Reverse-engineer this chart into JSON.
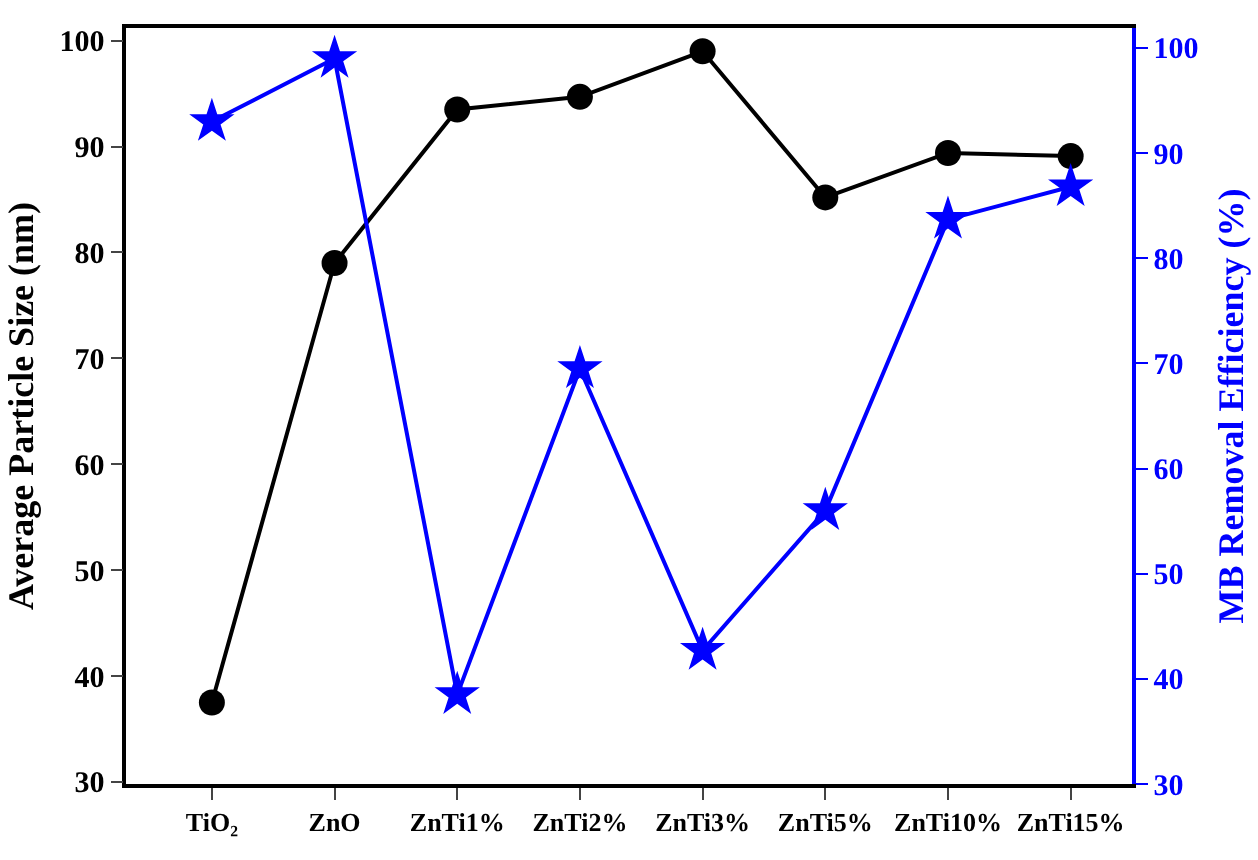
{
  "chart_data": {
    "type": "line",
    "ylabel": "Average Particle Size (nm)",
    "y2label": "MB Removal Efficiency (%)",
    "categories": [
      "TiO₂",
      "ZnO",
      "ZnTi1%",
      "ZnTi2%",
      "ZnTi3%",
      "ZnTi5%",
      "ZnTi10%",
      "ZnTi15%"
    ],
    "series": [
      {
        "color": "#000000",
        "marker": "circle",
        "values": [
          37.5,
          79,
          93.5,
          94.7,
          99,
          85.2,
          89.4,
          89.1
        ]
      },
      {
        "color": "#0000ff",
        "marker": "star",
        "axis": "y2",
        "values": [
          93,
          99,
          38.5,
          69.5,
          42.7,
          56,
          83.7,
          86.8
        ]
      }
    ],
    "ylim": [
      29.8,
      101.2
    ],
    "yticks": [
      30,
      40,
      50,
      60,
      70,
      80,
      90,
      100
    ],
    "y2lim": [
      30,
      101.9
    ],
    "y2ticks": [
      30,
      40,
      50,
      60,
      70,
      80,
      90,
      100
    ],
    "grid": false,
    "line_style": "solid"
  }
}
